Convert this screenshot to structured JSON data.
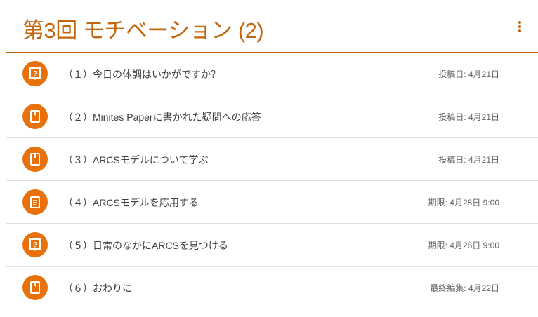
{
  "topic": {
    "title": "第3回 モチベーション (2)",
    "accent": "#c0660e",
    "icon_bg": "#e8710a"
  },
  "items": [
    {
      "label": "（１）今日の体調はいかがですか？",
      "date": "投稿日: 4月21日",
      "icon": "question-icon"
    },
    {
      "label": "（２）Minites Paperに書かれた疑問への応答",
      "date": "投稿日: 4月21日",
      "icon": "book-icon"
    },
    {
      "label": "（３）ARCSモデルについて学ぶ",
      "date": "投稿日: 4月21日",
      "icon": "book-icon"
    },
    {
      "label": "（４）ARCSモデルを応用する",
      "date": "期限: 4月28日 9:00",
      "icon": "assignment-icon"
    },
    {
      "label": "（５）日常のなかにARCSを見つける",
      "date": "期限: 4月26日 9:00",
      "icon": "question-icon"
    },
    {
      "label": "（６）おわりに",
      "date": "最終編集: 4月22日",
      "icon": "book-icon"
    }
  ]
}
